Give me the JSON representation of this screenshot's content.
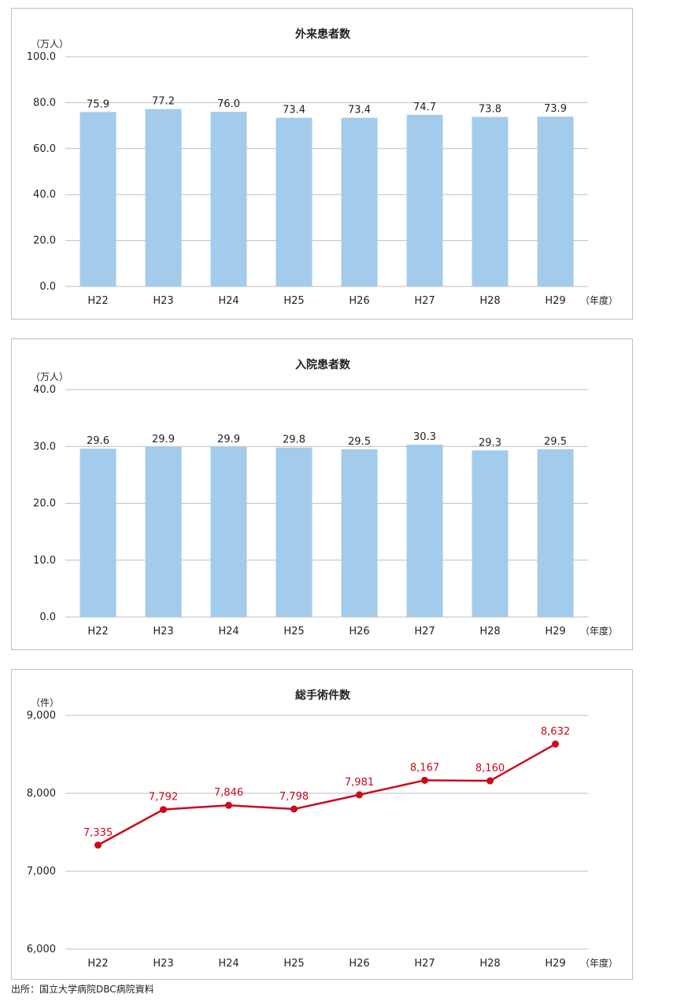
{
  "source_note": "出所：国立大学病院DBC病院資料",
  "colors": {
    "bar": "#a3cbec",
    "line": "#cc0a1c",
    "grid": "#bfbfbf",
    "text": "#222222"
  },
  "chart_data": [
    {
      "type": "bar",
      "title": "外来患者数",
      "unit_label": "（万人）",
      "x_suffix": "（年度）",
      "categories": [
        "H22",
        "H23",
        "H24",
        "H25",
        "H26",
        "H27",
        "H28",
        "H29"
      ],
      "values": [
        75.9,
        77.2,
        76.0,
        73.4,
        73.4,
        74.7,
        73.8,
        73.9
      ],
      "value_labels": [
        "75.9",
        "77.2",
        "76.0",
        "73.4",
        "73.4",
        "74.7",
        "73.8",
        "73.9"
      ],
      "ylim": [
        0,
        100
      ],
      "yticks": [
        "0.0",
        "20.0",
        "40.0",
        "60.0",
        "80.0",
        "100.0"
      ],
      "grid": true
    },
    {
      "type": "bar",
      "title": "入院患者数",
      "unit_label": "（万人）",
      "x_suffix": "（年度）",
      "categories": [
        "H22",
        "H23",
        "H24",
        "H25",
        "H26",
        "H27",
        "H28",
        "H29"
      ],
      "values": [
        29.6,
        29.9,
        29.9,
        29.8,
        29.5,
        30.3,
        29.3,
        29.5
      ],
      "value_labels": [
        "29.6",
        "29.9",
        "29.9",
        "29.8",
        "29.5",
        "30.3",
        "29.3",
        "29.5"
      ],
      "ylim": [
        0,
        40
      ],
      "yticks": [
        "0.0",
        "10.0",
        "20.0",
        "30.0",
        "40.0"
      ],
      "grid": true
    },
    {
      "type": "line",
      "title": "総手術件数",
      "unit_label": "（件）",
      "x_suffix": "（年度）",
      "categories": [
        "H22",
        "H23",
        "H24",
        "H25",
        "H26",
        "H27",
        "H28",
        "H29"
      ],
      "values": [
        7335,
        7792,
        7846,
        7798,
        7981,
        8167,
        8160,
        8632
      ],
      "value_labels": [
        "7,335",
        "7,792",
        "7,846",
        "7,798",
        "7,981",
        "8,167",
        "8,160",
        "8,632"
      ],
      "ylim": [
        6000,
        9000
      ],
      "yticks": [
        "6,000",
        "7,000",
        "8,000",
        "9,000"
      ],
      "grid": true
    }
  ]
}
